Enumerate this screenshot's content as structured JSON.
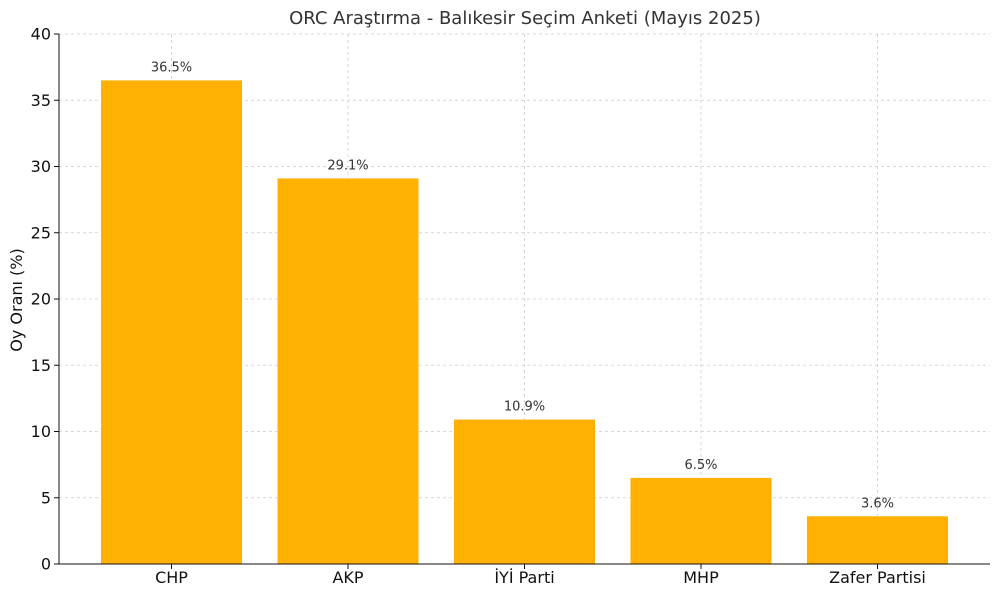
{
  "chart_data": {
    "type": "bar",
    "title": "ORC Araştırma - Balıkesir Seçim Anketi (Mayıs 2025)",
    "xlabel": "",
    "ylabel": "Oy Oranı (%)",
    "categories": [
      "CHP",
      "AKP",
      "İYİ Parti",
      "MHP",
      "Zafer Partisi"
    ],
    "values": [
      36.5,
      29.1,
      10.9,
      6.5,
      3.6
    ],
    "value_labels": [
      "36.5%",
      "29.1%",
      "10.9%",
      "6.5%",
      "3.6%"
    ],
    "ylim": [
      0,
      40
    ],
    "yticks": [
      0,
      5,
      10,
      15,
      20,
      25,
      30,
      35,
      40
    ],
    "grid": true,
    "legend": "none",
    "bar_color": "#FFB000"
  }
}
